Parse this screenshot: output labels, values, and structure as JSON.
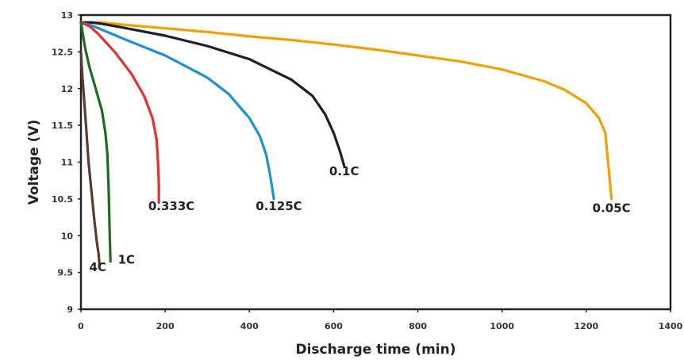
{
  "chart_data": {
    "type": "line",
    "title": "",
    "xlabel": "Discharge time (min)",
    "ylabel": "Voltage (V)",
    "xlim": [
      0,
      1400
    ],
    "ylim": [
      9,
      13
    ],
    "xticks": [
      "0",
      "200",
      "400",
      "600",
      "800",
      "1000",
      "1200",
      "1400"
    ],
    "yticks": [
      "9",
      "9.5",
      "10",
      "10.5",
      "11",
      "11.5",
      "12",
      "12.5",
      "13"
    ],
    "grid": false,
    "legend": "none",
    "series": [
      {
        "name": "0.05C",
        "color": "#f0a000",
        "x": [
          0,
          50,
          100,
          200,
          300,
          400,
          500,
          600,
          700,
          800,
          900,
          1000,
          1100,
          1150,
          1200,
          1230,
          1245,
          1250,
          1255,
          1260
        ],
        "y": [
          12.9,
          12.9,
          12.87,
          12.82,
          12.77,
          12.71,
          12.66,
          12.6,
          12.53,
          12.45,
          12.37,
          12.26,
          12.1,
          11.98,
          11.8,
          11.6,
          11.4,
          11.1,
          10.8,
          10.5
        ]
      },
      {
        "name": "0.1C",
        "color": "#1e1e2e",
        "x": [
          0,
          25,
          50,
          100,
          200,
          300,
          400,
          500,
          550,
          580,
          600,
          615,
          625
        ],
        "y": [
          12.9,
          12.9,
          12.88,
          12.83,
          12.72,
          12.58,
          12.4,
          12.12,
          11.9,
          11.65,
          11.4,
          11.15,
          10.95
        ]
      },
      {
        "name": "0.125C",
        "color": "#1f8fd6",
        "x": [
          0,
          25,
          50,
          100,
          200,
          300,
          350,
          400,
          425,
          440,
          450,
          458
        ],
        "y": [
          12.9,
          12.86,
          12.8,
          12.68,
          12.45,
          12.15,
          11.93,
          11.6,
          11.35,
          11.1,
          10.8,
          10.5
        ]
      },
      {
        "name": "0.333C",
        "color": "#e33030",
        "x": [
          0,
          20,
          40,
          80,
          120,
          150,
          170,
          180,
          183,
          185,
          185
        ],
        "y": [
          12.9,
          12.85,
          12.75,
          12.5,
          12.2,
          11.9,
          11.6,
          11.3,
          11.0,
          10.7,
          10.45
        ]
      },
      {
        "name": "1C",
        "color": "#1e6a1e",
        "x": [
          0,
          10,
          20,
          35,
          50,
          58,
          63,
          66,
          68,
          70
        ],
        "y": [
          12.9,
          12.55,
          12.3,
          12.0,
          11.7,
          11.4,
          11.1,
          10.6,
          10.1,
          9.65
        ]
      },
      {
        "name": "4C",
        "color": "#5a3a30",
        "x": [
          0,
          3,
          7,
          12,
          18,
          25,
          32,
          38,
          42,
          44
        ],
        "y": [
          12.5,
          12.2,
          11.9,
          11.5,
          11.0,
          10.6,
          10.2,
          9.9,
          9.75,
          9.6
        ]
      }
    ],
    "annotations": [
      {
        "text": "0.05C",
        "x": 1260,
        "y": 10.32
      },
      {
        "text": "0.1C",
        "x": 625,
        "y": 10.82
      },
      {
        "text": "0.125C",
        "x": 470,
        "y": 10.35
      },
      {
        "text": "0.333C",
        "x": 215,
        "y": 10.35
      },
      {
        "text": "1C",
        "x": 108,
        "y": 9.62
      },
      {
        "text": "4C",
        "x": 40,
        "y": 9.52
      }
    ]
  }
}
